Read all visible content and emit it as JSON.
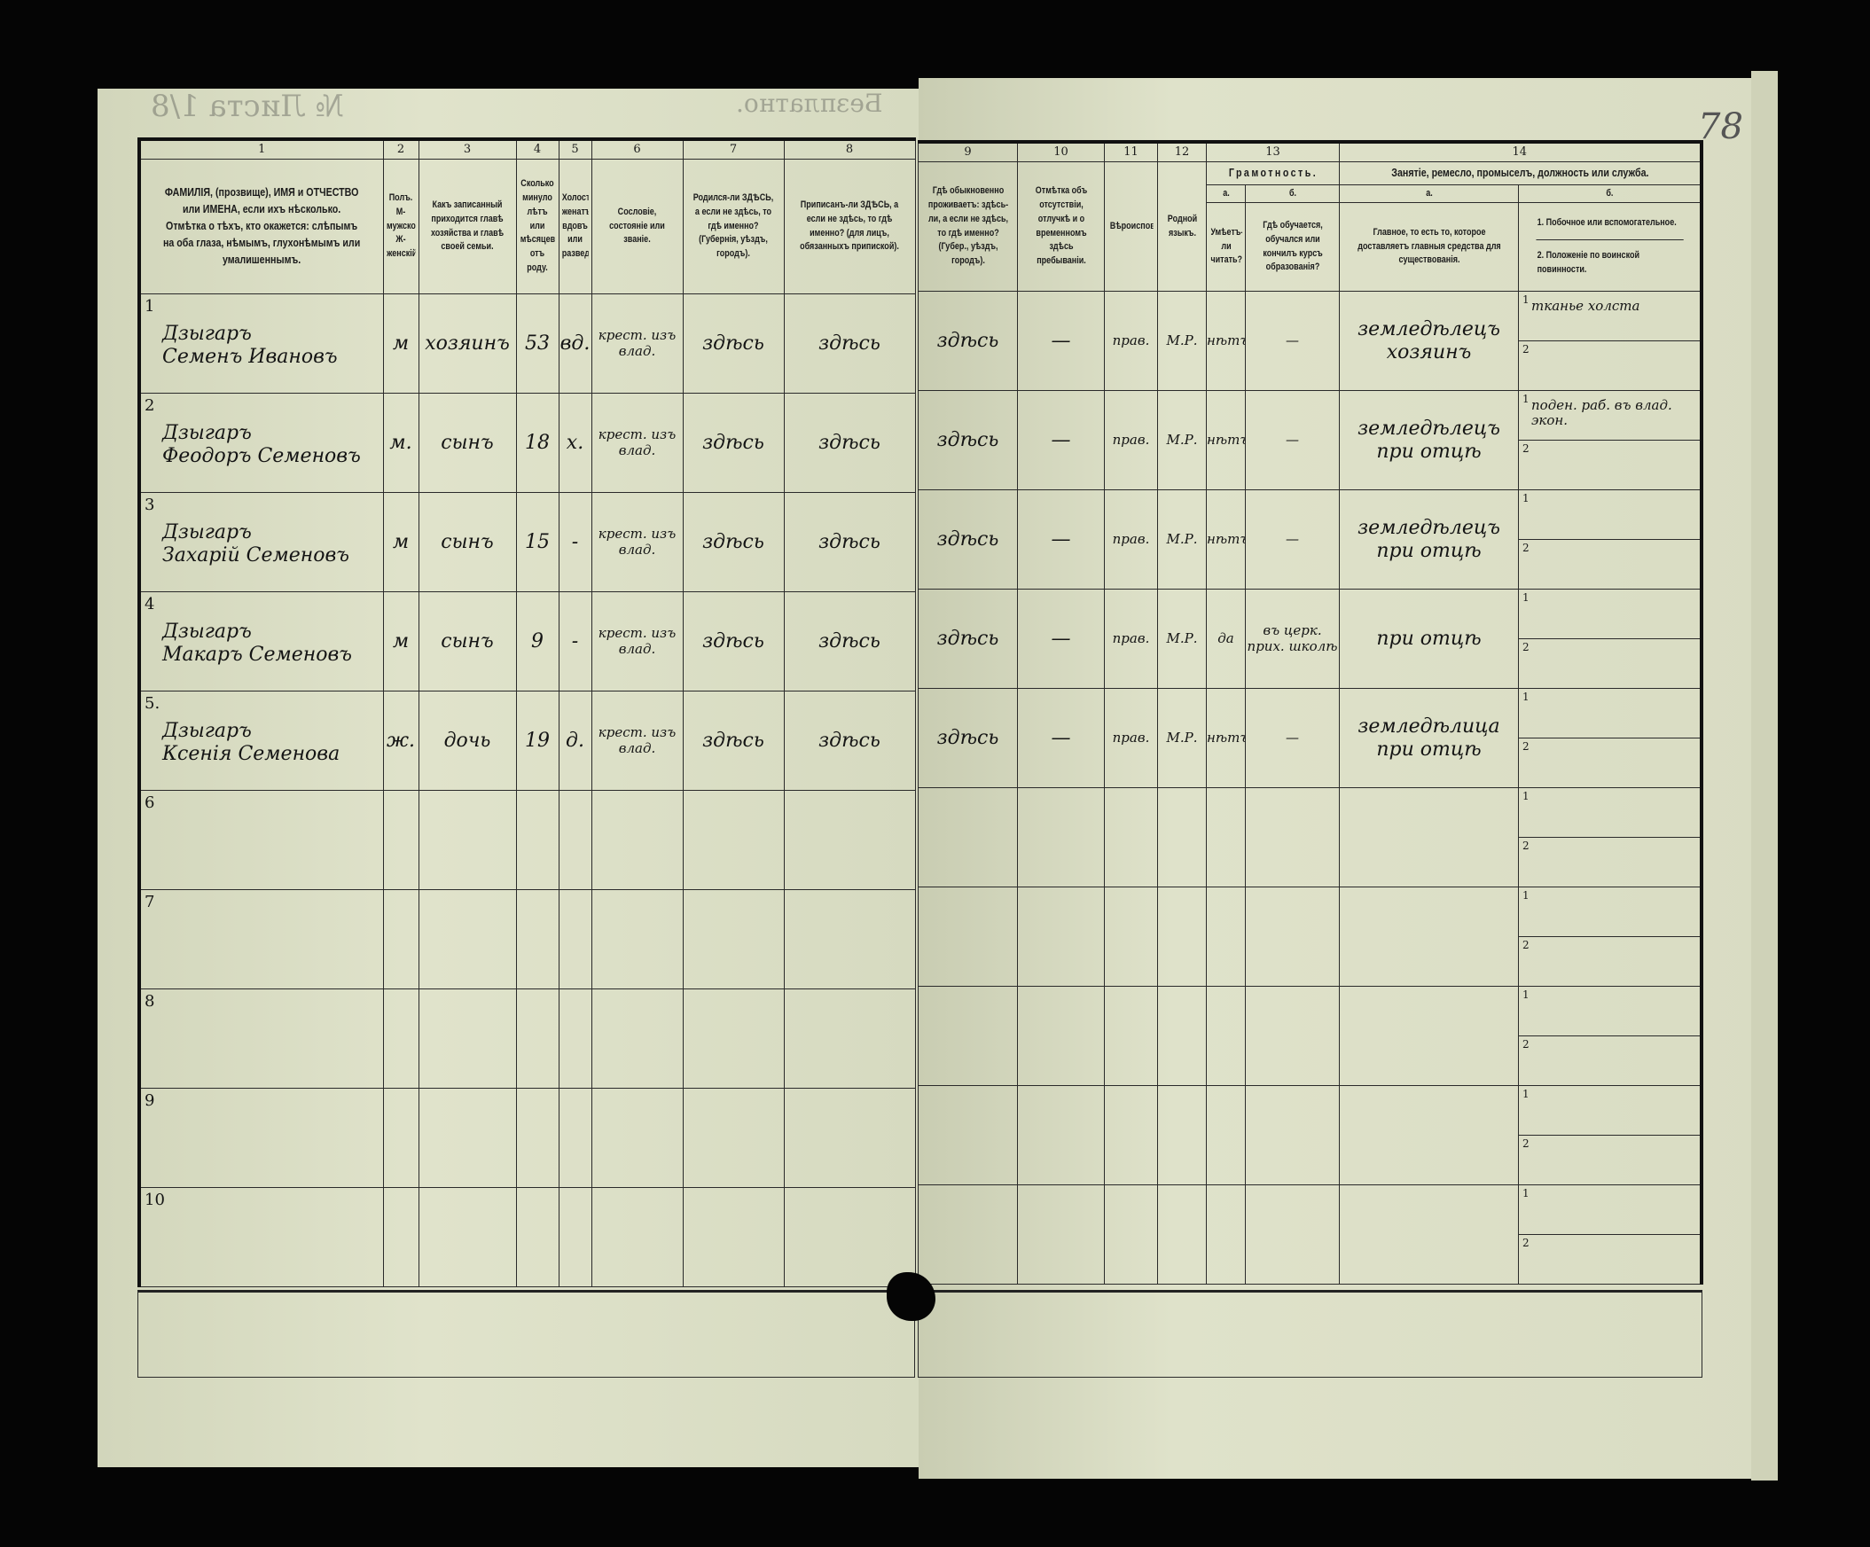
{
  "header_notes": {
    "sheet_no": "№ Листа 1/8",
    "free": "Безплатно."
  },
  "folio": "78",
  "left_columns": [
    {
      "num": "1",
      "title": "ФАМИЛІЯ, (прозвище), ИМЯ и ОТЧЕСТВО или ИМЕНА, если ихъ нѣсколько. Отмѣтка о тѣхъ, кто окажется: слѣпымъ на оба глаза, нѣмымъ, глухонѣмымъ или умалишеннымъ."
    },
    {
      "num": "2",
      "title": "Полъ. М-мужской. Ж-женскій."
    },
    {
      "num": "3",
      "title": "Какъ записанный приходится главѣ хозяйства и главѣ своей семьи."
    },
    {
      "num": "4",
      "title": "Сколько минуло лѣтъ или мѣсяцевъ отъ роду."
    },
    {
      "num": "5",
      "title": "Холостъ, женатъ, вдовъ или разведенъ."
    },
    {
      "num": "6",
      "title": "Сословіе, состояніе или званіе."
    },
    {
      "num": "7",
      "title": "Родился-ли ЗДѢСЬ, а если не здѣсь, то гдѣ именно? (Губернія, уѣздъ, городъ)."
    },
    {
      "num": "8",
      "title": "Приписанъ-ли ЗДѢСЬ, а если не здѣсь, то гдѣ именно? (для лицъ, обязанныхъ припиской)."
    }
  ],
  "right_columns": {
    "c9": {
      "num": "9",
      "title": "Гдѣ обыкновенно проживаетъ: здѣсь-ли, а если не здѣсь, то гдѣ именно? (Губер., уѣздъ, городъ)."
    },
    "c10": {
      "num": "10",
      "title": "Отмѣтка объ отсутствіи, отлучкѣ и о временномъ здѣсь пребываніи."
    },
    "c11": {
      "num": "11",
      "title": "Вѣроисповѣданіе."
    },
    "c12": {
      "num": "12",
      "title": "Родной языкъ."
    },
    "c13": {
      "num": "13",
      "title": "Грамотность.",
      "a": "а.",
      "a_title": "Умѣетъ-ли читать?",
      "b": "б.",
      "b_title": "Гдѣ обучается, обучался или кончилъ курсъ образованія?"
    },
    "c14": {
      "num": "14",
      "title": "Занятіе, ремесло, промыселъ, должность или служба.",
      "a": "а.",
      "a_title": "Главное, то есть то, которое доставляетъ главныя средства для существованія.",
      "b": "б.",
      "b_title_1": "1. Побочное или вспомогательное.",
      "b_title_2": "2. Положеніе по воинской повинности."
    }
  },
  "rows": [
    {
      "n": "1",
      "surname": "Дзыгаръ",
      "name": "Семенъ Ивановъ",
      "sex": "м",
      "relation": "хозяинъ",
      "age": "53",
      "marital": "вд.",
      "estate": "крест. изъ влад.",
      "born": "здѣсь",
      "registered": "здѣсь",
      "resides": "здѣсь",
      "absence": "—",
      "religion": "прав.",
      "language": "М.Р.",
      "literate": "нѣтъ",
      "schooling": "—",
      "occupation": "земледѣлецъ хозяинъ",
      "side_1": "тканье холста",
      "side_2": ""
    },
    {
      "n": "2",
      "surname": "Дзыгаръ",
      "name": "Феодоръ Семеновъ",
      "sex": "м.",
      "relation": "сынъ",
      "age": "18",
      "marital": "х.",
      "estate": "крест. изъ влад.",
      "born": "здѣсь",
      "registered": "здѣсь",
      "resides": "здѣсь",
      "absence": "—",
      "religion": "прав.",
      "language": "М.Р.",
      "literate": "нѣтъ",
      "schooling": "—",
      "occupation": "земледѣлецъ при отцѣ",
      "side_1": "поден. раб. въ влад. экон.",
      "side_2": ""
    },
    {
      "n": "3",
      "surname": "Дзыгаръ",
      "name": "Захарій Семеновъ",
      "sex": "м",
      "relation": "сынъ",
      "age": "15",
      "marital": "-",
      "estate": "крест. изъ влад.",
      "born": "здѣсь",
      "registered": "здѣсь",
      "resides": "здѣсь",
      "absence": "—",
      "religion": "прав.",
      "language": "М.Р.",
      "literate": "нѣтъ",
      "schooling": "—",
      "occupation": "земледѣлецъ при отцѣ",
      "side_1": "",
      "side_2": ""
    },
    {
      "n": "4",
      "surname": "Дзыгаръ",
      "name": "Макаръ Семеновъ",
      "sex": "м",
      "relation": "сынъ",
      "age": "9",
      "marital": "-",
      "estate": "крест. изъ влад.",
      "born": "здѣсь",
      "registered": "здѣсь",
      "resides": "здѣсь",
      "absence": "—",
      "religion": "прав.",
      "language": "М.Р.",
      "literate": "да",
      "schooling": "въ церк. прих. школѣ",
      "occupation": "при отцѣ",
      "side_1": "",
      "side_2": ""
    },
    {
      "n": "5.",
      "surname": "Дзыгаръ",
      "name": "Ксенія Семенова",
      "sex": "ж.",
      "relation": "дочь",
      "age": "19",
      "marital": "д.",
      "estate": "крест. изъ влад.",
      "born": "здѣсь",
      "registered": "здѣсь",
      "resides": "здѣсь",
      "absence": "—",
      "religion": "прав.",
      "language": "М.Р.",
      "literate": "нѣтъ",
      "schooling": "—",
      "occupation": "земледѣлица при отцѣ",
      "side_1": "",
      "side_2": ""
    },
    {
      "n": "6"
    },
    {
      "n": "7"
    },
    {
      "n": "8"
    },
    {
      "n": "9"
    },
    {
      "n": "10"
    }
  ],
  "subrow_labels": [
    "1",
    "2"
  ],
  "colors": {
    "paper": "#dcdfc6",
    "ink": "#1b1b1b",
    "background": "#050505"
  }
}
